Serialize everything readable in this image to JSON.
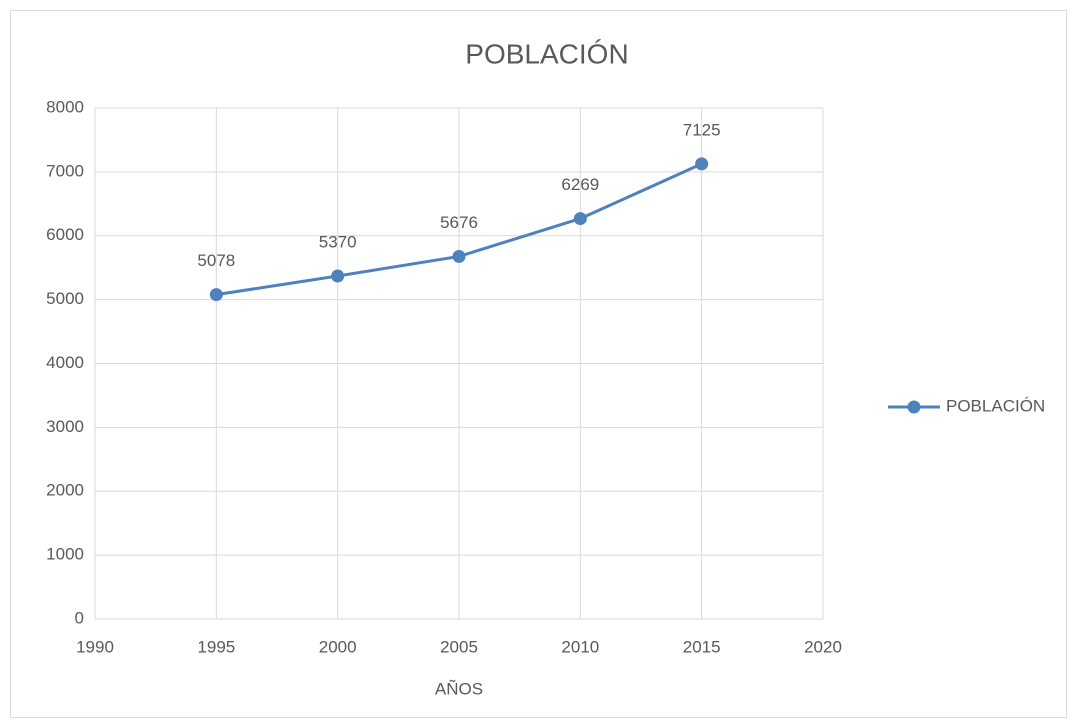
{
  "chart_data": {
    "type": "line",
    "title": "POBLACIÓN",
    "x_label": "AÑOS",
    "x": [
      1995,
      2000,
      2005,
      2010,
      2015
    ],
    "series": [
      {
        "name": "POBLACIÓN",
        "color": "#4f81bd",
        "values": [
          5078,
          5370,
          5676,
          6269,
          7125
        ]
      }
    ],
    "xlim": [
      1990,
      2020
    ],
    "xticks": [
      1990,
      1995,
      2000,
      2005,
      2010,
      2015,
      2020
    ],
    "ylim": [
      0,
      8000
    ],
    "yticks": [
      0,
      1000,
      2000,
      3000,
      4000,
      5000,
      6000,
      7000,
      8000
    ],
    "grid": true,
    "legend": "right",
    "data_labels": true
  }
}
